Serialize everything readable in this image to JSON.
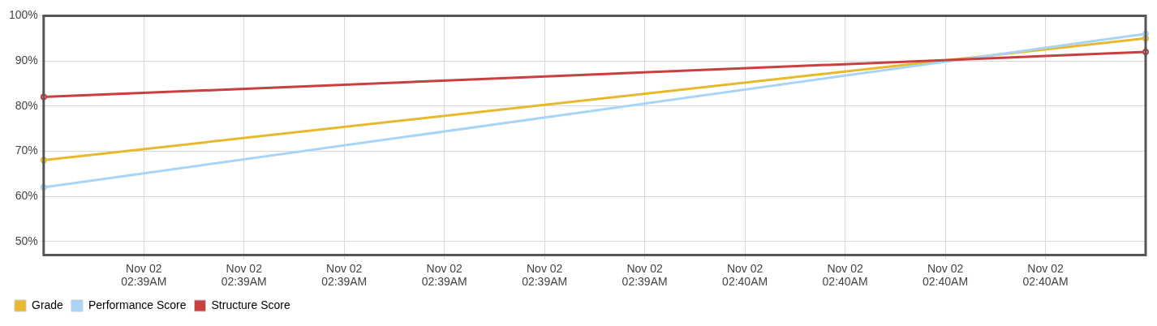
{
  "chart_data": {
    "type": "line",
    "categories": [
      null,
      "Nov 02\n02:39AM",
      "Nov 02\n02:39AM",
      "Nov 02\n02:39AM",
      "Nov 02\n02:39AM",
      "Nov 02\n02:39AM",
      "Nov 02\n02:39AM",
      "Nov 02\n02:40AM",
      "Nov 02\n02:40AM",
      "Nov 02\n02:40AM",
      "Nov 02\n02:40AM",
      null
    ],
    "series": [
      {
        "name": "Grade",
        "color": "#e8b92d",
        "values": [
          68,
          null,
          null,
          null,
          null,
          null,
          null,
          null,
          null,
          null,
          null,
          95
        ]
      },
      {
        "name": "Performance Score",
        "color": "#a8d4f5",
        "values": [
          62,
          null,
          null,
          null,
          null,
          null,
          null,
          null,
          null,
          null,
          null,
          96
        ]
      },
      {
        "name": "Structure Score",
        "color": "#cc3f3f",
        "values": [
          82,
          null,
          null,
          null,
          null,
          null,
          null,
          null,
          null,
          null,
          null,
          92
        ]
      }
    ],
    "ylim": [
      47,
      100
    ],
    "yticks": [
      {
        "value": 50,
        "label": "50%"
      },
      {
        "value": 60,
        "label": "60%"
      },
      {
        "value": 70,
        "label": "70%"
      },
      {
        "value": 80,
        "label": "80%"
      },
      {
        "value": 90,
        "label": "90%"
      },
      {
        "value": 100,
        "label": "100%"
      }
    ],
    "grid": true,
    "legend": "bottom left",
    "marker": "circle",
    "line_style": "solid"
  }
}
